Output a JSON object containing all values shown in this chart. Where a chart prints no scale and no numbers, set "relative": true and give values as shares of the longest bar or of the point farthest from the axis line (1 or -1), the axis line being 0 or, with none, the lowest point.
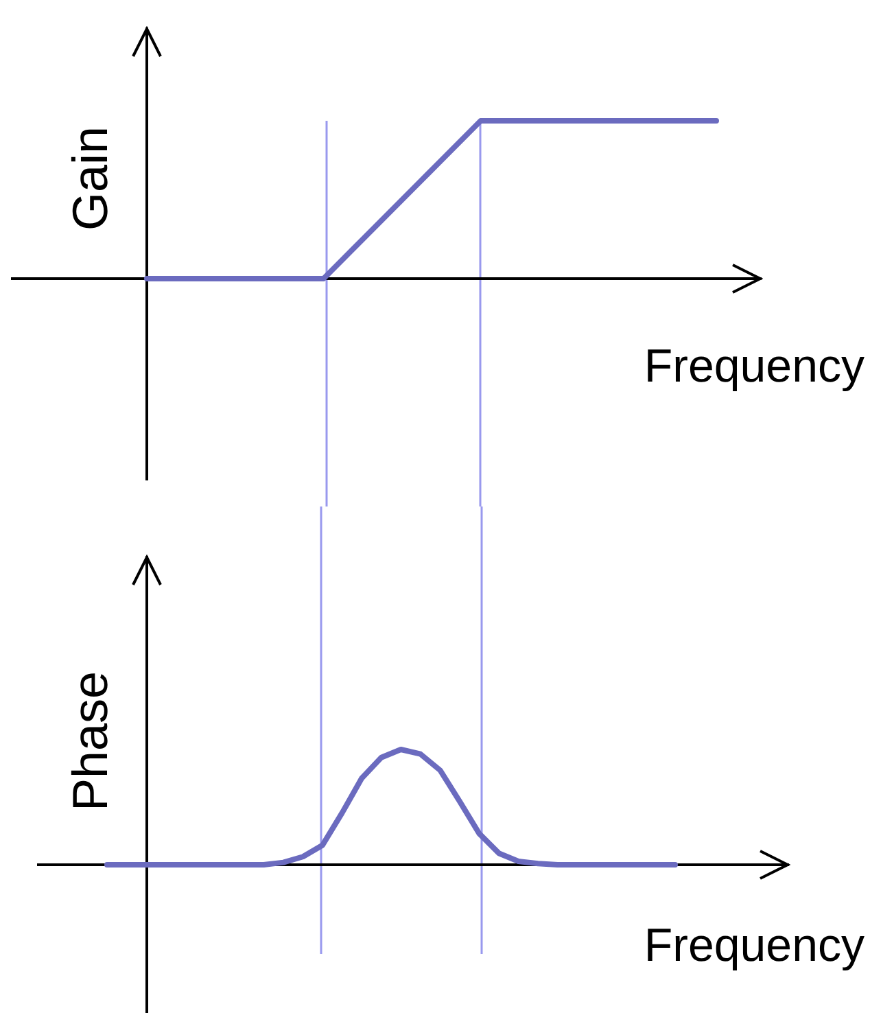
{
  "chart_data": [
    {
      "type": "line",
      "ylabel": "Gain",
      "xlabel": "Frequency",
      "relative": true,
      "categories": [
        null,
        null,
        null,
        null,
        null,
        null,
        null,
        null,
        null,
        null,
        null,
        null,
        null,
        null,
        null,
        null,
        null,
        null,
        null,
        null,
        null,
        null,
        null,
        null,
        null,
        null,
        null,
        null,
        null,
        null
      ],
      "series": [
        {
          "color": "#6b6bbf",
          "values": [
            0,
            0,
            0,
            0,
            0,
            0,
            0,
            0,
            0,
            0,
            0.125,
            0.25,
            0.375,
            0.5,
            0.625,
            0.75,
            0.875,
            1,
            1,
            1,
            1,
            1,
            1,
            1,
            1,
            1,
            1,
            1,
            1,
            1
          ]
        }
      ]
    },
    {
      "type": "line",
      "ylabel": "Phase",
      "xlabel": "Frequency",
      "relative": true,
      "categories": [
        null,
        null,
        null,
        null,
        null,
        null,
        null,
        null,
        null,
        null,
        null,
        null,
        null,
        null,
        null,
        null,
        null,
        null,
        null,
        null,
        null,
        null,
        null,
        null,
        null,
        null,
        null,
        null,
        null,
        null
      ],
      "series": [
        {
          "color": "#6b6bbf",
          "values": [
            0,
            0,
            0,
            0,
            0,
            0,
            0,
            0,
            0,
            0.02,
            0.07,
            0.17,
            0.45,
            0.75,
            0.93,
            1,
            0.96,
            0.82,
            0.55,
            0.27,
            0.1,
            0.03,
            0.01,
            0,
            0,
            0,
            0,
            0,
            0,
            0
          ]
        }
      ]
    }
  ]
}
